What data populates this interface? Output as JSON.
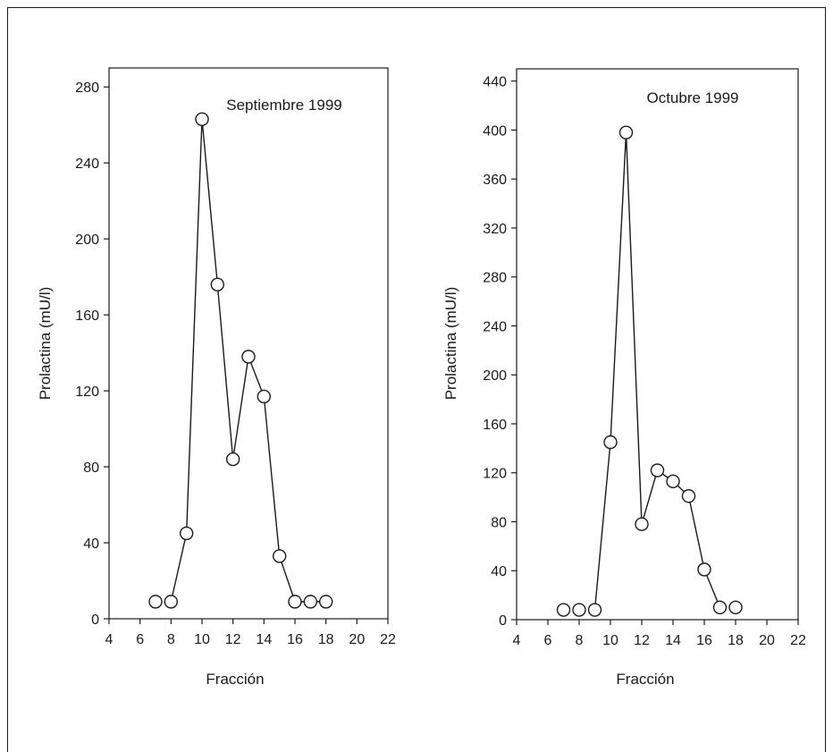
{
  "figure": {
    "charts": [
      {
        "id": "left"
      },
      {
        "id": "right"
      }
    ]
  },
  "chart_data": [
    {
      "type": "line",
      "title": "Septiembre 1999",
      "xlabel": "Fracción",
      "ylabel": "Prolactina (mU/l)",
      "xlim": [
        4,
        22
      ],
      "ylim": [
        0,
        290
      ],
      "xticks": [
        4,
        6,
        8,
        10,
        12,
        14,
        16,
        18,
        20,
        22
      ],
      "yticks": [
        0,
        40,
        80,
        120,
        160,
        200,
        240,
        280
      ],
      "marker": "open-circle",
      "line_color": "#1a1a1a",
      "series": [
        {
          "x": [
            7,
            8,
            9,
            10,
            11,
            12,
            13,
            14,
            15,
            16,
            17,
            18
          ],
          "y": [
            9,
            9,
            45,
            263,
            176,
            84,
            138,
            117,
            33,
            9,
            9,
            9
          ],
          "connect": [
            false,
            true,
            true,
            true,
            true,
            true,
            true,
            true,
            true,
            true,
            true
          ]
        }
      ]
    },
    {
      "type": "line",
      "title": "Octubre 1999",
      "xlabel": "Fracción",
      "ylabel": "Prolactina (mU/l)",
      "xlim": [
        4,
        22
      ],
      "ylim": [
        0,
        450
      ],
      "xticks": [
        4,
        6,
        8,
        10,
        12,
        14,
        16,
        18,
        20,
        22
      ],
      "yticks": [
        0,
        40,
        80,
        120,
        160,
        200,
        240,
        280,
        320,
        360,
        400,
        440
      ],
      "marker": "open-circle",
      "line_color": "#1a1a1a",
      "series": [
        {
          "x": [
            7,
            8,
            9,
            10,
            11,
            12,
            13,
            14,
            15,
            16,
            17,
            18
          ],
          "y": [
            8,
            8,
            8,
            145,
            398,
            78,
            122,
            113,
            101,
            41,
            10,
            10
          ],
          "connect": [
            false,
            false,
            true,
            true,
            true,
            true,
            true,
            true,
            true,
            true,
            false
          ]
        }
      ]
    }
  ]
}
